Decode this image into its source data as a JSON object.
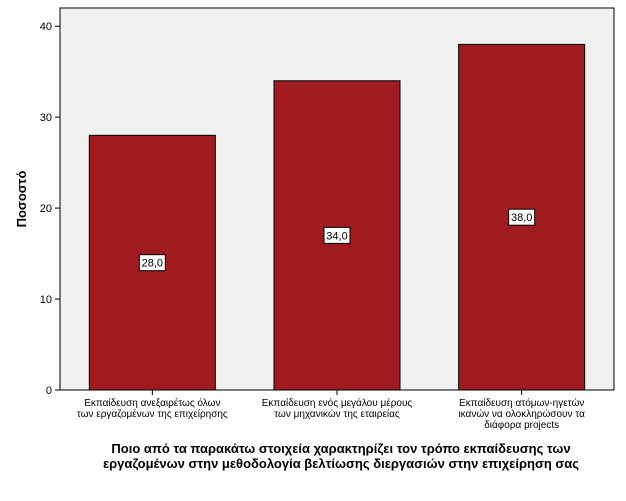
{
  "chart_data": {
    "type": "bar",
    "categories": [
      [
        "Εκπαίδευση ανεξαιρέτως όλων",
        "των εργαζομένων της επιχείρησης"
      ],
      [
        "Εκπαίδευση ενός μεγάλου μέρους",
        "των μηχανικών της εταιρείας"
      ],
      [
        "Εκπαίδευση ατόμων-ηγετών",
        "ικανών να ολοκληρώσουν τα",
        "διάφορα projects"
      ]
    ],
    "values": [
      28.0,
      34.0,
      38.0
    ],
    "data_labels": [
      "28,0",
      "34,0",
      "38,0"
    ],
    "ylabel": "Ποσοστό",
    "xlabel": [
      "Ποιο από τα παρακάτω στοιχεία χαρακτηρίζει τον τρόπο εκπαίδευσης των",
      "εργαζομένων στην μεθοδολογία βελτίωσης διεργασιών στην επιχείρηση σας"
    ],
    "ylim": [
      0,
      42
    ],
    "yticks": [
      0,
      10,
      20,
      30,
      40
    ],
    "grid": false,
    "colors": {
      "bar": "#9f1b1f",
      "plot_background": "#f0f0f0",
      "bar_outline": "#000000"
    }
  }
}
